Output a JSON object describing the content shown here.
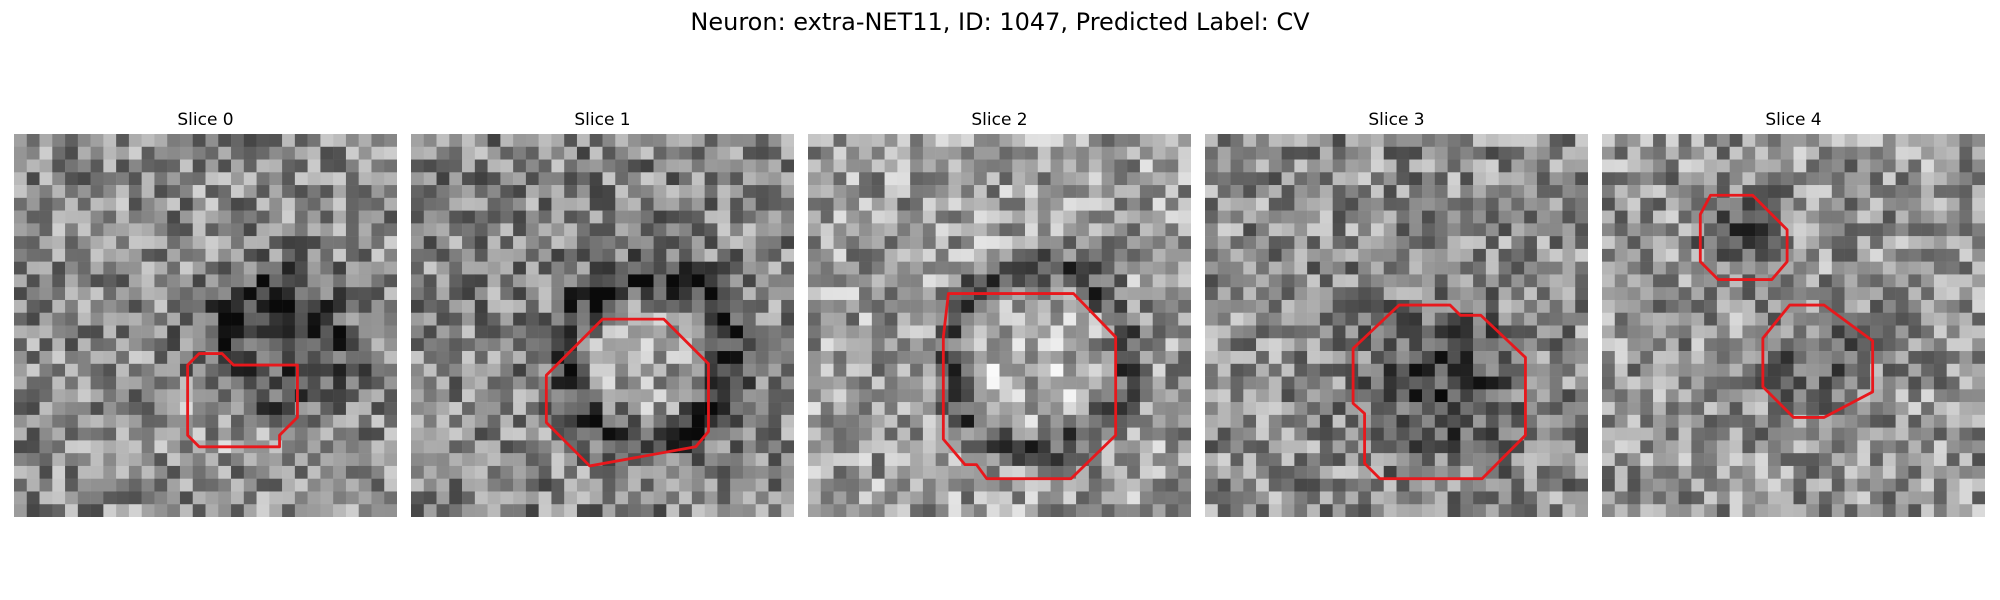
{
  "figure": {
    "title": "Neuron: extra-NET11, ID: 1047, Predicted Label: CV"
  },
  "colors": {
    "roi_outline": "#e8181c",
    "background": "#ffffff"
  },
  "slices": [
    {
      "title": "Slice 0"
    },
    {
      "title": "Slice 1"
    },
    {
      "title": "Slice 2"
    },
    {
      "title": "Slice 3"
    },
    {
      "title": "Slice 4"
    }
  ]
}
